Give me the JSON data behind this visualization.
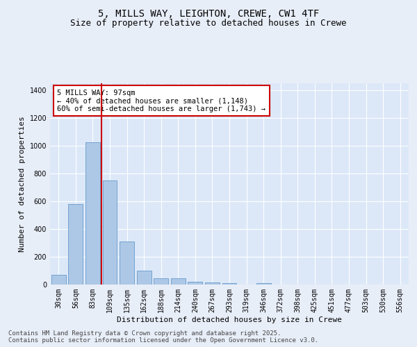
{
  "title_line1": "5, MILLS WAY, LEIGHTON, CREWE, CW1 4TF",
  "title_line2": "Size of property relative to detached houses in Crewe",
  "xlabel": "Distribution of detached houses by size in Crewe",
  "ylabel": "Number of detached properties",
  "categories": [
    "30sqm",
    "56sqm",
    "83sqm",
    "109sqm",
    "135sqm",
    "162sqm",
    "188sqm",
    "214sqm",
    "240sqm",
    "267sqm",
    "293sqm",
    "319sqm",
    "346sqm",
    "372sqm",
    "398sqm",
    "425sqm",
    "451sqm",
    "477sqm",
    "503sqm",
    "530sqm",
    "556sqm"
  ],
  "values": [
    70,
    580,
    1025,
    750,
    310,
    100,
    45,
    45,
    20,
    15,
    10,
    0,
    10,
    0,
    0,
    0,
    0,
    0,
    0,
    0,
    0
  ],
  "bar_color": "#adc8e6",
  "bar_edge_color": "#6699cc",
  "vline_color": "#cc0000",
  "vline_x_index": 2.5,
  "annotation_text": "5 MILLS WAY: 97sqm\n← 40% of detached houses are smaller (1,148)\n60% of semi-detached houses are larger (1,743) →",
  "annotation_box_color": "#ffffff",
  "annotation_box_edge": "#cc0000",
  "ylim": [
    0,
    1450
  ],
  "yticks": [
    0,
    200,
    400,
    600,
    800,
    1000,
    1200,
    1400
  ],
  "bg_color": "#e8eef8",
  "plot_bg_color": "#dce8f8",
  "grid_color": "#ffffff",
  "footer_line1": "Contains HM Land Registry data © Crown copyright and database right 2025.",
  "footer_line2": "Contains public sector information licensed under the Open Government Licence v3.0.",
  "title_fontsize": 10,
  "subtitle_fontsize": 9,
  "axis_label_fontsize": 8,
  "tick_fontsize": 7,
  "annotation_fontsize": 7.5,
  "footer_fontsize": 6.5
}
